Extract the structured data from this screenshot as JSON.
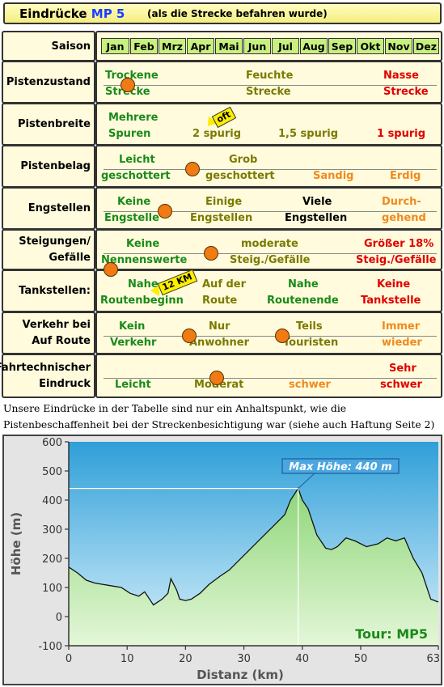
{
  "header": {
    "title": "Eindrücke",
    "route": "MP 5",
    "subtitle": "(als die Strecke befahren wurde)"
  },
  "season": {
    "label": "Saison",
    "months": [
      "Jan",
      "Feb",
      "Mrz",
      "Apr",
      "Mai",
      "Jun",
      "Jul",
      "Aug",
      "Sep",
      "Okt",
      "Nov",
      "Dez"
    ]
  },
  "rows": [
    {
      "label": [
        "Pistenzustand"
      ],
      "items": [
        {
          "l1": "Trockene",
          "l2": "Strecke"
        },
        {
          "l1": "Feuchte",
          "l2": "Strecke"
        },
        {
          "l1": "Nasse",
          "l2": "Strecke"
        }
      ],
      "rating": 0.1
    },
    {
      "label": [
        "Pistenbreite"
      ],
      "items": [
        {
          "l1": "Mehrere",
          "l2": "Spuren"
        },
        {
          "l1": "",
          "l2": "2 spurig"
        },
        {
          "l1": "",
          "l2": "1,5 spurig"
        },
        {
          "l1": "",
          "l2": "1 spurig"
        }
      ],
      "tag": "oft"
    },
    {
      "label": [
        "Pistenbelag"
      ],
      "items": [
        {
          "l1": "Leicht",
          "l2": "geschottert"
        },
        {
          "l1": "Grob",
          "l2": "geschottert"
        },
        {
          "l1": "",
          "l2": "Sandig"
        },
        {
          "l1": "",
          "l2": "Erdig"
        }
      ],
      "rating": 0.3
    },
    {
      "label": [
        "Engstellen"
      ],
      "items": [
        {
          "l1": "Keine",
          "l2": "Engstelle"
        },
        {
          "l1": "Einige",
          "l2": "Engstellen"
        },
        {
          "l1": "Viele",
          "l2": "Engstellen"
        },
        {
          "l1": "Durch-",
          "l2": "gehend"
        }
      ],
      "rating": 0.2
    },
    {
      "label": [
        "Steigungen/",
        "Gefälle"
      ],
      "items": [
        {
          "l1": "Keine",
          "l2": "Nennenswerte"
        },
        {
          "l1": "moderate",
          "l2": "Steig./Gefälle"
        },
        {
          "l1": "Größer 18%",
          "l2": "Steig./Gefälle"
        }
      ],
      "rating": 0.35
    },
    {
      "label": [
        "Tankstellen:"
      ],
      "items": [
        {
          "l1": "Nahe",
          "l2": "Routenbeginn"
        },
        {
          "l1": "Auf der",
          "l2": "Route"
        },
        {
          "l1": "Nahe",
          "l2": "Routenende"
        },
        {
          "l1": "Keine",
          "l2": "Tankstelle"
        }
      ],
      "rating": 0.05,
      "tag": "12 KM"
    },
    {
      "label": [
        "Verkehr bei",
        "Auf Route"
      ],
      "items": [
        {
          "l1": "Kein",
          "l2": "Verkehr"
        },
        {
          "l1": "Nur",
          "l2": "Anwohner"
        },
        {
          "l1": "Teils",
          "l2": "Touristen"
        },
        {
          "l1": "Immer",
          "l2": "wieder"
        }
      ],
      "rating": [
        0.28,
        0.55
      ]
    },
    {
      "label": [
        "Fahrtechnischer",
        "Eindruck"
      ],
      "items": [
        {
          "l1": "",
          "l2": "Leicht"
        },
        {
          "l1": "",
          "l2": "Moderat"
        },
        {
          "l1": "",
          "l2": "schwer"
        },
        {
          "l1": "Sehr",
          "l2": "schwer"
        }
      ],
      "rating": 0.36
    }
  ],
  "note": "Unsere Eindrücke in der Tabelle sind nur ein Anhaltspunkt, wie die Pistenbeschaffenheit bei der Streckenbesichtigung war (siehe auch Haftung Seite 2)",
  "chart_data": {
    "type": "area",
    "xlabel": "Distanz  (km)",
    "ylabel": "Höhe  (m)",
    "xlim": [
      0,
      63.3
    ],
    "ylim": [
      -100,
      600
    ],
    "xticks": [
      "0",
      "10",
      "20",
      "30",
      "40",
      "50",
      "63.3"
    ],
    "yticks": [
      "600",
      "500",
      "400",
      "300",
      "200",
      "100",
      "0",
      "-100"
    ],
    "annotation": "Max Höhe: 440 m",
    "tour_label": "Tour: MP5",
    "max": {
      "x": 39.3,
      "y": 440
    },
    "x": [
      0,
      1.5,
      3,
      4.5,
      6,
      7.5,
      9,
      10.5,
      12,
      13,
      13.5,
      14.5,
      16,
      17,
      17.5,
      18.5,
      19,
      20,
      21,
      22.5,
      24,
      26,
      27.5,
      29,
      31,
      33,
      35,
      37,
      38,
      39.3,
      40,
      41,
      42.5,
      44,
      45,
      46,
      47.5,
      49,
      51,
      53,
      54.5,
      56,
      57.5,
      59,
      60.5,
      62,
      63.3
    ],
    "y": [
      170,
      150,
      125,
      115,
      110,
      105,
      100,
      80,
      70,
      85,
      70,
      40,
      60,
      80,
      130,
      90,
      60,
      55,
      60,
      80,
      110,
      140,
      160,
      190,
      230,
      270,
      310,
      350,
      400,
      440,
      400,
      370,
      280,
      235,
      230,
      240,
      270,
      260,
      240,
      250,
      270,
      260,
      270,
      200,
      150,
      60,
      50
    ]
  }
}
